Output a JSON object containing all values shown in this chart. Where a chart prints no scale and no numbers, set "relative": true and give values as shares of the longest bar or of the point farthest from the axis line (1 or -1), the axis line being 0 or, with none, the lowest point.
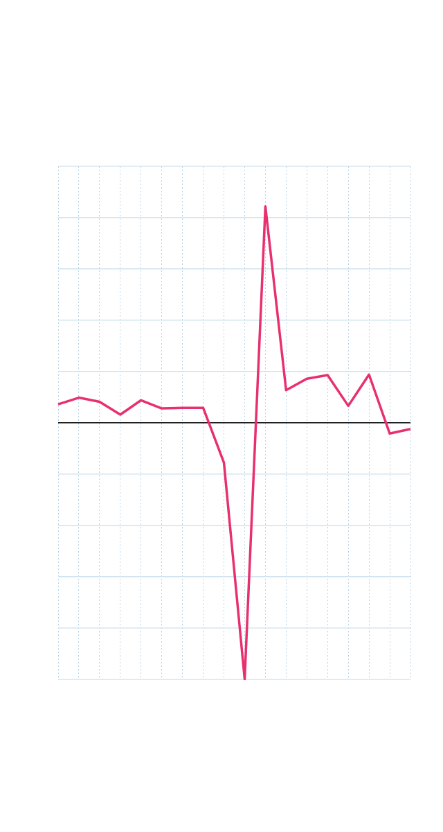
{
  "chart_data": {
    "type": "line",
    "relative": true,
    "categories": [
      null,
      null,
      null,
      null,
      null,
      null,
      null,
      null,
      null,
      null,
      null,
      null,
      null,
      null,
      null,
      null,
      null,
      null
    ],
    "series": [
      {
        "color": "#e8306f",
        "values": [
          0.072,
          0.098,
          0.082,
          0.032,
          0.088,
          0.056,
          0.058,
          0.058,
          -0.156,
          -1,
          0.844,
          0.127,
          0.172,
          0.186,
          0.066,
          0.188,
          -0.042,
          -0.024
        ]
      }
    ],
    "grid": true,
    "legend": false,
    "marker": "none",
    "line_style": "solid"
  }
}
